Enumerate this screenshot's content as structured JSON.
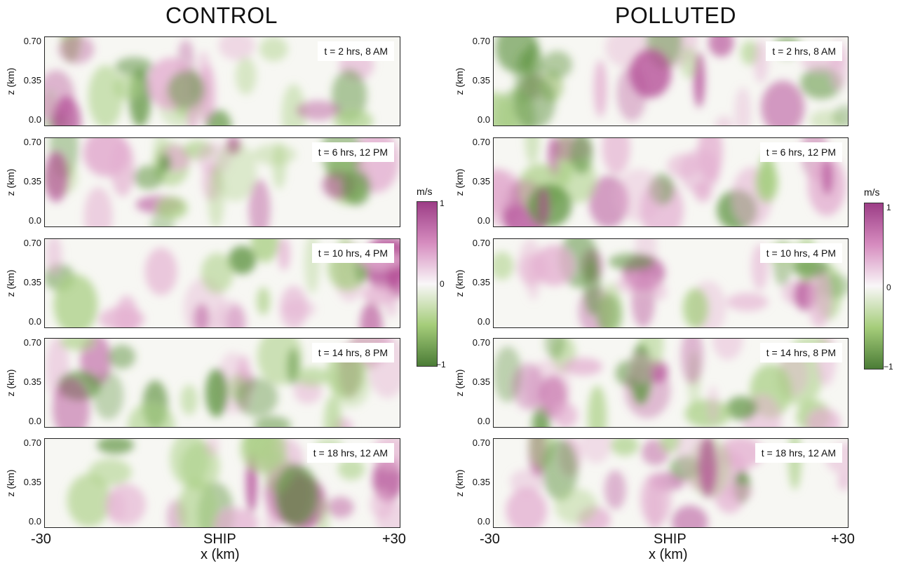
{
  "titles": {
    "control": "CONTROL",
    "polluted": "POLLUTED"
  },
  "y_axis": {
    "label": "z (km)",
    "ticks": [
      "0.70",
      "0.35",
      "0.0"
    ]
  },
  "x_axis": {
    "label": "x (km)",
    "ticks": [
      "-30",
      "SHIP",
      "+30"
    ]
  },
  "colorbar": {
    "unit": "m/s",
    "ticks": [
      "1",
      "0",
      "−1"
    ],
    "colors": [
      "#9c3d86",
      "#f9f7f8",
      "#4b7c36"
    ]
  },
  "panels": {
    "control": [
      {
        "label": "t = 2 hrs, 8 AM"
      },
      {
        "label": "t = 6 hrs, 12 PM"
      },
      {
        "label": "t = 10 hrs, 4 PM"
      },
      {
        "label": "t = 14 hrs, 8 PM"
      },
      {
        "label": "t = 18 hrs, 12 AM"
      }
    ],
    "polluted": [
      {
        "label": "t = 2 hrs, 8 AM"
      },
      {
        "label": "t = 6 hrs, 12 PM"
      },
      {
        "label": "t = 10 hrs, 4 PM"
      },
      {
        "label": "t = 14 hrs, 8 PM"
      },
      {
        "label": "t = 18 hrs, 12 AM"
      }
    ]
  }
}
